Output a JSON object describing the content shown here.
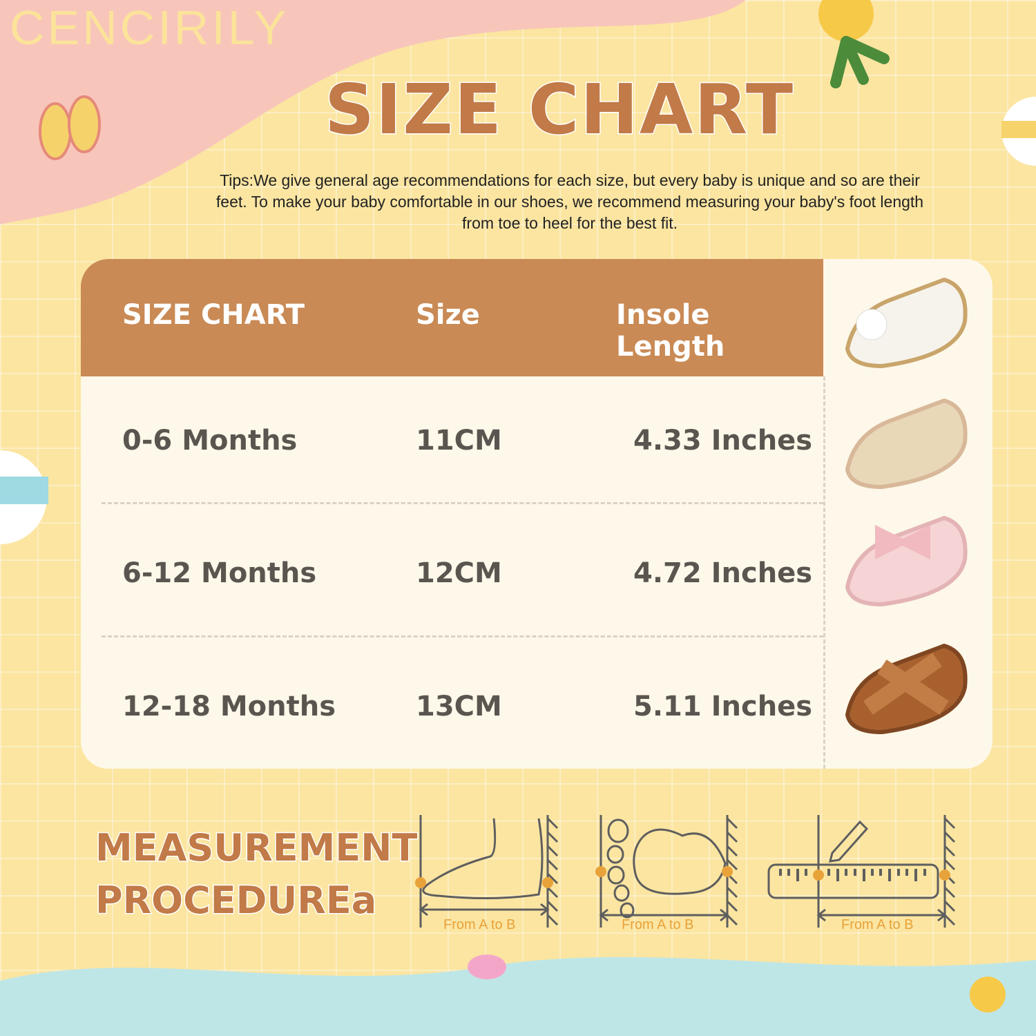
{
  "brand": "CENCIRILY",
  "title": "SIZE CHART",
  "tips": "Tips:We give general age recommendations for each size, but every baby is unique and so are their feet. To make your baby comfortable in our shoes, we recommend measuring your baby's foot length from toe to heel for the best fit.",
  "table": {
    "headers": [
      "SIZE CHART",
      "Size",
      "Insole Length"
    ],
    "rows": [
      {
        "age": "0-6 Months",
        "size": "11CM",
        "insole": "4.33 Inches",
        "shoe_color": "#f4efe6"
      },
      {
        "age": "6-12 Months",
        "size": "12CM",
        "insole": "4.72 Inches",
        "shoe_color": "#f6d4d6"
      },
      {
        "age": "12-18 Months",
        "size": "13CM",
        "insole": "5.11 Inches",
        "shoe_color": "#a8612e"
      }
    ],
    "header_shoe_color": "#f6f3ec",
    "row1_shoe_color": "#e8d8b8"
  },
  "measurement": {
    "title_line1": "MEASUREMENT",
    "title_line2": "PROCEDUREa",
    "labels": [
      "From A to B",
      "From A to B",
      "From A to B"
    ],
    "point_a": "A",
    "point_b": "B"
  },
  "colors": {
    "accent": "#c17a48",
    "header": "#c98a55",
    "background": "#fbe5a1",
    "marker": "#e8a23a"
  }
}
